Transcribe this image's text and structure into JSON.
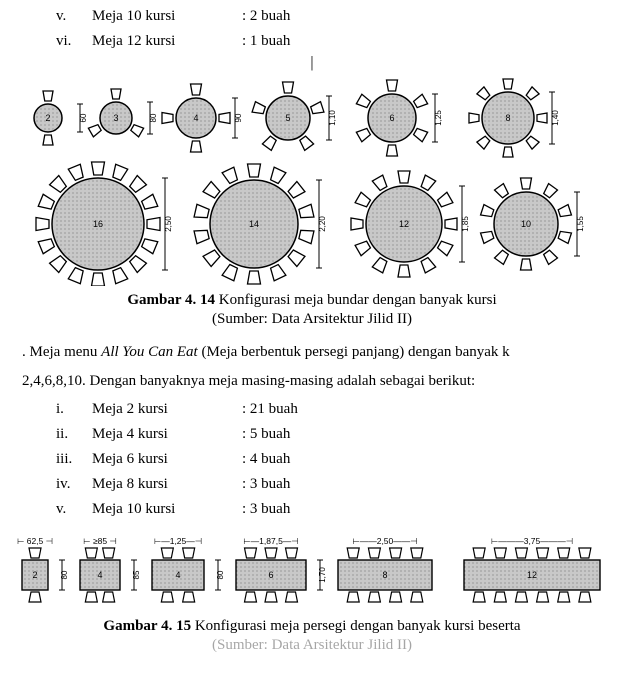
{
  "top_list": {
    "items": [
      {
        "num": "v.",
        "label": "Meja 10 kursi",
        "value": ": 2 buah"
      },
      {
        "num": "vi.",
        "label": "Meja 12 kursi",
        "value": ": 1 buah"
      }
    ]
  },
  "cursor_glyph": "|",
  "fig1": {
    "caption_prefix": "Gambar 4. 14",
    "caption_text": "  Konfigurasi meja bundar dengan banyak kursi",
    "source": "(Sumber: Data Arsitektur Jilid II)",
    "row1": [
      {
        "seats": 2,
        "r": 14,
        "dim": "60",
        "chair_w": 10
      },
      {
        "seats": 3,
        "r": 16,
        "dim": "80",
        "chair_w": 10
      },
      {
        "seats": 4,
        "r": 20,
        "dim": "90",
        "chair_w": 11
      },
      {
        "seats": 5,
        "r": 22,
        "dim": "1,10",
        "chair_w": 11
      },
      {
        "seats": 6,
        "r": 24,
        "dim": "1,25",
        "chair_w": 11
      },
      {
        "seats": 8,
        "r": 26,
        "dim": "1,40",
        "chair_w": 10
      }
    ],
    "row2": [
      {
        "seats": 16,
        "r": 46,
        "dim": "2,50",
        "chair_w": 13,
        "label": "16"
      },
      {
        "seats": 14,
        "r": 44,
        "dim": "2,20",
        "chair_w": 13,
        "label": "14"
      },
      {
        "seats": 12,
        "r": 38,
        "dim": "1,85",
        "chair_w": 12,
        "label": "12"
      },
      {
        "seats": 10,
        "r": 32,
        "dim": "1,55",
        "chair_w": 11,
        "label": "10"
      }
    ],
    "colors": {
      "table_fill": "#c8c8c8",
      "stroke": "#000000",
      "chair_fill": "#ffffff",
      "dim_text": "#000000"
    }
  },
  "mid_para": {
    "lead": ".   Meja menu ",
    "italic": "All You Can Eat",
    "rest1": " (Meja berbentuk persegi panjang) dengan banyak k",
    "line2": "2,4,6,8,10. Dengan banyaknya meja masing-masing adalah sebagai berikut:"
  },
  "mid_list": {
    "items": [
      {
        "num": "i.",
        "label": "Meja 2 kursi",
        "value": ": 21 buah"
      },
      {
        "num": "ii.",
        "label": "Meja 4 kursi",
        "value": ": 5 buah"
      },
      {
        "num": "iii.",
        "label": "Meja 6 kursi",
        "value": ": 4 buah"
      },
      {
        "num": "iv.",
        "label": "Meja 8 kursi",
        "value": ": 3 buah"
      },
      {
        "num": "v.",
        "label": "Meja 10 kursi",
        "value": ": 3 buah"
      }
    ]
  },
  "fig2": {
    "caption_prefix": "Gambar 4. 15",
    "caption_text": " Konfigurasi meja persegi dengan banyak kursi beserta",
    "source_cut": "(Sumber: Data Arsitektur Jilid II)",
    "tables": [
      {
        "label": "2",
        "w_top": "⊢ 62,5 ⊣",
        "h": "80",
        "chairs_side": 1,
        "tw": 26,
        "th": 30
      },
      {
        "label": "4",
        "w_top": "⊢ ≥85 ⊣",
        "h": "85",
        "chairs_side": 2,
        "tw": 40,
        "th": 30
      },
      {
        "label": "4",
        "w_top": "⊢—1,25—⊣",
        "h": "80",
        "chairs_side": 2,
        "tw": 52,
        "th": 30
      },
      {
        "label": "6",
        "w_top": "⊢—1,87,5—⊣",
        "h": "1,70",
        "chairs_side": 3,
        "tw": 70,
        "th": 30
      },
      {
        "label": "8",
        "w_top": "⊢——2,50——⊣",
        "h": "",
        "chairs_side": 4,
        "tw": 94,
        "th": 30
      },
      {
        "label": "12",
        "w_top": "⊢———3,75———⊣",
        "h": "",
        "chairs_side": 6,
        "tw": 136,
        "th": 30
      }
    ],
    "colors": {
      "table_fill": "#c8c8c8",
      "stroke": "#000000",
      "chair_fill": "#ffffff"
    }
  }
}
